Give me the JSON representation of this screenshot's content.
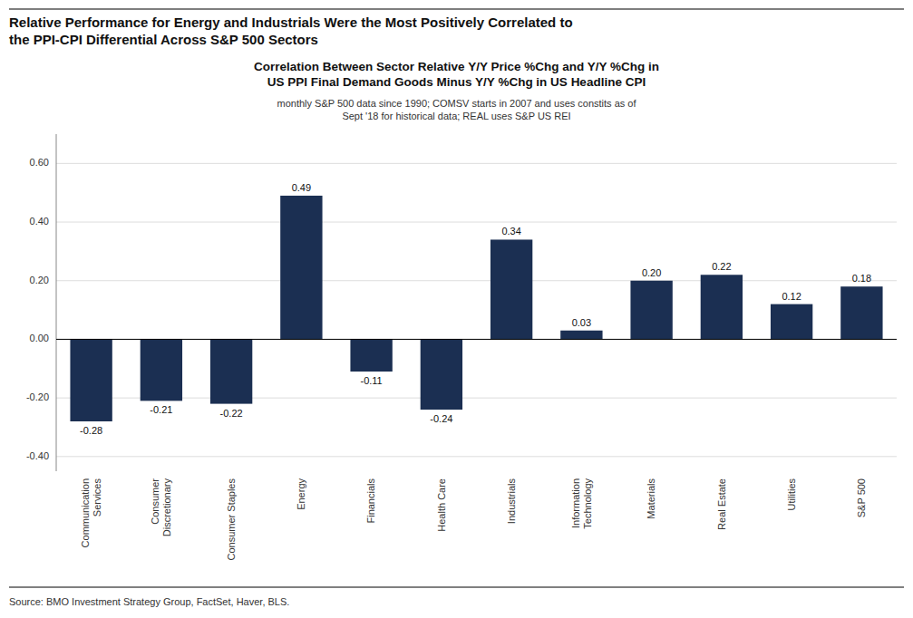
{
  "title": "Relative Performance for Energy and Industrials Were the Most Positively Correlated to\nthe PPI-CPI Differential Across S&P 500 Sectors",
  "source": "Source: BMO Investment Strategy Group, FactSet, Haver, BLS.",
  "chart_data": {
    "type": "bar",
    "title": "Correlation Between Sector Relative Y/Y Price %Chg and Y/Y %Chg in\nUS PPI Final Demand Goods Minus Y/Y %Chg in US Headline CPI",
    "subtitle": "monthly S&P 500 data since 1990; COMSV starts in 2007 and uses  constits as of\nSept '18 for historical data; REAL uses S&P US REI",
    "categories": [
      "Communication\nServices",
      "Consumer\nDiscretionary",
      "Consumer Staples",
      "Energy",
      "Financials",
      "Health Care",
      "Industrials",
      "Information\nTechnology",
      "Materials",
      "Real Estate",
      "Utilities",
      "S&P 500"
    ],
    "values": [
      -0.28,
      -0.21,
      -0.22,
      0.49,
      -0.11,
      -0.24,
      0.34,
      0.03,
      0.2,
      0.22,
      0.12,
      0.18
    ],
    "value_labels": [
      "-0.28",
      "-0.21",
      "-0.22",
      "0.49",
      "-0.11",
      "-0.24",
      "0.34",
      "0.03",
      "0.20",
      "0.22",
      "0.12",
      "0.18"
    ],
    "data_labels": true,
    "color": "#1b2f52",
    "ylim": [
      -0.45,
      0.7
    ],
    "yticks": [
      {
        "value": -0.4,
        "label": "-0.40"
      },
      {
        "value": -0.2,
        "label": "-0.20"
      },
      {
        "value": 0.0,
        "label": "0.00"
      },
      {
        "value": 0.2,
        "label": "0.20"
      },
      {
        "value": 0.4,
        "label": "0.40"
      },
      {
        "value": 0.6,
        "label": "0.60"
      }
    ],
    "grid": true
  }
}
